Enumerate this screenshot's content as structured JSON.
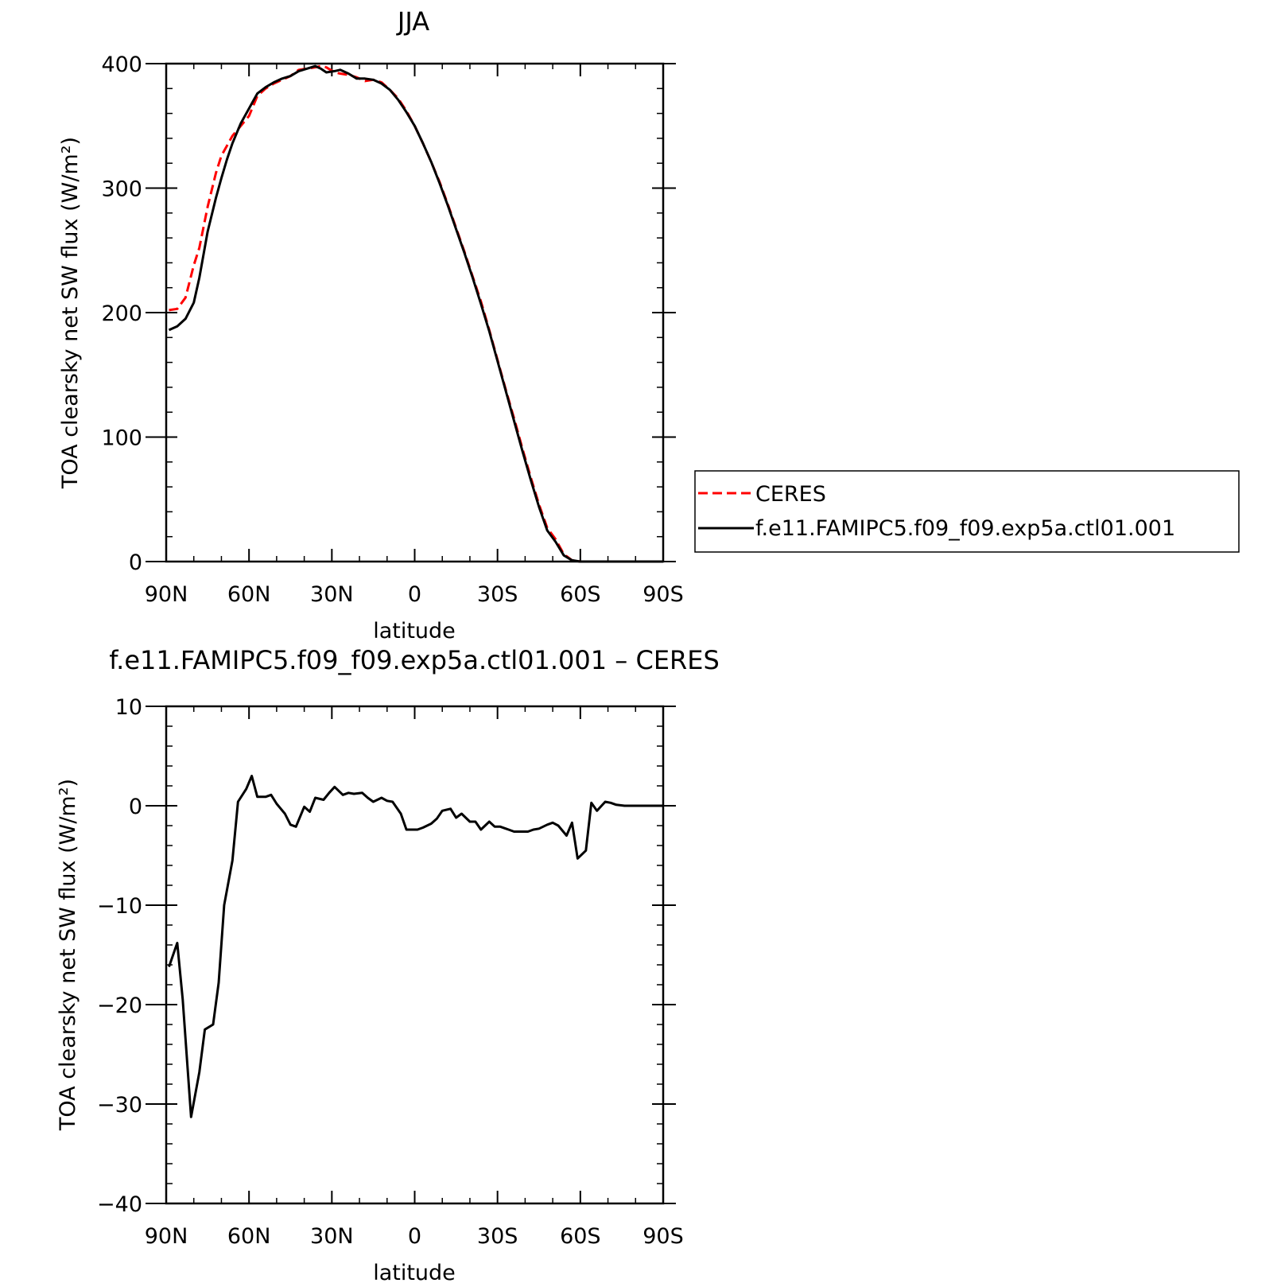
{
  "chart_data": [
    {
      "type": "line",
      "title": "JJA",
      "xlabel": "latitude",
      "ylabel": "TOA clearsky net SW flux (W/m²)",
      "xlim": [
        90,
        -90
      ],
      "ylim": [
        0,
        400
      ],
      "x_tick_values": [
        90,
        60,
        30,
        0,
        -30,
        -60,
        -90
      ],
      "x_tick_labels": [
        "90N",
        "60N",
        "30N",
        "0",
        "30S",
        "60S",
        "90S"
      ],
      "y_tick_values": [
        0,
        100,
        200,
        300,
        400
      ],
      "y_tick_labels": [
        "0",
        "100",
        "200",
        "300",
        "400"
      ],
      "legend": {
        "placement": "outside-right",
        "entries": [
          "CERES",
          "f.e11.FAMIPC5.f09_f09.exp5a.ctl01.001"
        ]
      },
      "series": [
        {
          "name": "CERES",
          "color": "#ff0000",
          "style": "dashed",
          "x": [
            89,
            86,
            83,
            80,
            78,
            75,
            72,
            70,
            68,
            66,
            63,
            60,
            57,
            54,
            51,
            48,
            45,
            42,
            39,
            36,
            34,
            32,
            29,
            27,
            24,
            21,
            18,
            15,
            12,
            9,
            6,
            3,
            0,
            -3,
            -6,
            -9,
            -12,
            -15,
            -18,
            -21,
            -24,
            -27,
            -30,
            -33,
            -36,
            -39,
            -42,
            -45,
            -48,
            -51,
            -54,
            -57,
            -60,
            -63,
            -66,
            -69,
            -72,
            -75,
            -78,
            -81,
            -84,
            -87,
            -90
          ],
          "y": [
            202,
            203,
            212,
            238,
            252,
            285,
            312,
            326,
            334,
            342,
            350,
            358,
            374,
            380,
            384,
            387,
            390,
            395,
            396,
            397,
            398,
            397,
            393,
            392,
            391,
            389,
            386,
            387,
            385,
            379,
            372,
            362,
            350,
            336,
            321,
            305,
            287,
            268,
            249,
            229,
            209,
            186,
            162,
            138,
            115,
            91,
            68,
            46,
            27,
            18,
            6,
            1,
            0,
            0,
            0,
            0,
            0,
            0,
            0,
            0,
            0,
            0,
            0
          ]
        },
        {
          "name": "f.e11.FAMIPC5.f09_f09.exp5a.ctl01.001",
          "color": "#000000",
          "style": "solid",
          "x": [
            89,
            86,
            83,
            80,
            78,
            75,
            72,
            70,
            68,
            66,
            63,
            60,
            57,
            54,
            51,
            48,
            45,
            42,
            39,
            36,
            34,
            32,
            29,
            27,
            24,
            21,
            18,
            15,
            12,
            9,
            6,
            3,
            0,
            -3,
            -6,
            -9,
            -12,
            -15,
            -18,
            -21,
            -24,
            -27,
            -30,
            -33,
            -36,
            -39,
            -42,
            -45,
            -48,
            -51,
            -54,
            -57,
            -60,
            -63,
            -66,
            -69,
            -72,
            -75,
            -78,
            -81,
            -84,
            -87,
            -90
          ],
          "y": [
            186,
            189,
            195,
            208,
            228,
            265,
            292,
            308,
            323,
            336,
            352,
            364,
            376,
            381,
            385,
            388,
            390,
            394,
            396,
            398,
            396,
            393,
            394,
            395,
            392,
            388,
            388,
            387,
            384,
            379,
            371,
            361,
            350,
            336,
            321,
            304,
            286,
            267,
            248,
            228,
            207,
            185,
            161,
            137,
            113,
            89,
            66,
            44,
            25,
            16,
            5,
            1,
            0,
            0,
            0,
            0,
            0,
            0,
            0,
            0,
            0,
            0,
            0
          ]
        }
      ]
    },
    {
      "type": "line",
      "title": "f.e11.FAMIPC5.f09_f09.exp5a.ctl01.001 – CERES",
      "xlabel": "latitude",
      "ylabel": "TOA clearsky net SW flux (W/m²)",
      "xlim": [
        90,
        -90
      ],
      "ylim": [
        -40,
        10
      ],
      "x_tick_values": [
        90,
        60,
        30,
        0,
        -30,
        -60,
        -90
      ],
      "x_tick_labels": [
        "90N",
        "60N",
        "30N",
        "0",
        "30S",
        "60S",
        "90S"
      ],
      "y_tick_values": [
        10,
        0,
        -10,
        -20,
        -30,
        -40
      ],
      "y_tick_labels": [
        "10",
        "0",
        "−10",
        "−20",
        "−30",
        "−40"
      ],
      "series": [
        {
          "color": "#000000",
          "style": "solid",
          "x": [
            89,
            86,
            84,
            81,
            78,
            76,
            73,
            71,
            69,
            66,
            64,
            61,
            59,
            57,
            54,
            52,
            50,
            47,
            45,
            43,
            40,
            38,
            36,
            33,
            31,
            29,
            26,
            24,
            22,
            19,
            17,
            15,
            12,
            10,
            8,
            5,
            3,
            1,
            -1,
            -3,
            -6,
            -8,
            -10,
            -13,
            -15,
            -17,
            -20,
            -22,
            -24,
            -27,
            -29,
            -31,
            -34,
            -36,
            -38,
            -41,
            -43,
            -45,
            -48,
            -50,
            -52,
            -55,
            -57,
            -59,
            -62,
            -64,
            -66,
            -69,
            -71,
            -73,
            -76,
            -78,
            -80,
            -83,
            -85,
            -87,
            -90
          ],
          "y": [
            -16.2,
            -13.8,
            -19.5,
            -31.3,
            -26.8,
            -22.5,
            -22.0,
            -17.8,
            -10.0,
            -5.5,
            0.4,
            1.7,
            3.0,
            0.9,
            0.9,
            1.1,
            0.2,
            -0.8,
            -1.9,
            -2.1,
            -0.1,
            -0.6,
            0.8,
            0.6,
            1.3,
            1.9,
            1.1,
            1.3,
            1.2,
            1.3,
            0.8,
            0.4,
            0.8,
            0.5,
            0.4,
            -0.8,
            -2.4,
            -2.4,
            -2.4,
            -2.2,
            -1.8,
            -1.3,
            -0.5,
            -0.3,
            -1.2,
            -0.8,
            -1.6,
            -1.6,
            -2.4,
            -1.6,
            -2.1,
            -2.1,
            -2.4,
            -2.6,
            -2.6,
            -2.6,
            -2.4,
            -2.3,
            -1.9,
            -1.7,
            -2.0,
            -3.0,
            -1.7,
            -5.3,
            -4.5,
            0.3,
            -0.5,
            0.4,
            0.3,
            0.1,
            0.0,
            0.0,
            0.0,
            0.0,
            0.0,
            0.0,
            0.0
          ]
        }
      ]
    }
  ]
}
